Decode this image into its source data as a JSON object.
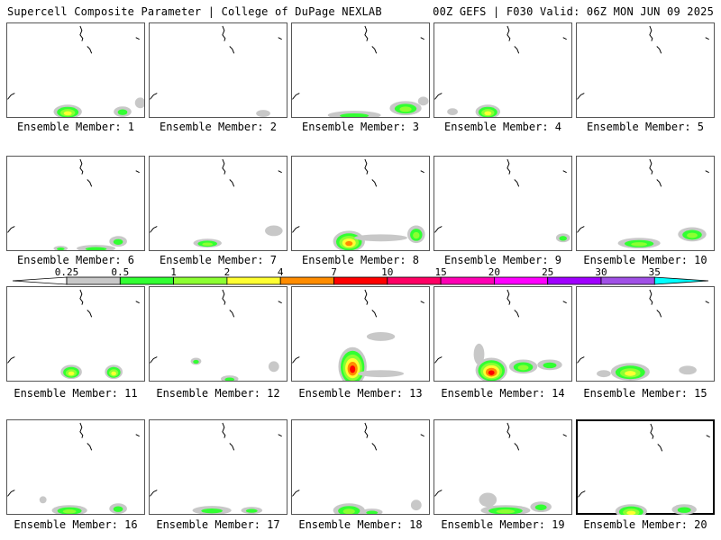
{
  "header": {
    "left": "Supercell Composite Parameter | College of DuPage NEXLAB",
    "right": "00Z GEFS | F030 Valid: 06Z MON JUN 09 2025"
  },
  "colorbar": {
    "labels": [
      "0.25",
      "0.5",
      "1",
      "2",
      "4",
      "7",
      "10",
      "15",
      "20",
      "25",
      "30",
      "35"
    ],
    "colors": [
      "#c8c8c8",
      "#32ff32",
      "#8cff32",
      "#ffff32",
      "#ff8c00",
      "#ff0000",
      "#ff0064",
      "#ff00b4",
      "#ff00ff",
      "#a000ff",
      "#a050e6",
      "#00ffff"
    ]
  },
  "members": [
    {
      "label": "Ensemble Member: 1"
    },
    {
      "label": "Ensemble Member: 2"
    },
    {
      "label": "Ensemble Member: 3"
    },
    {
      "label": "Ensemble Member: 4"
    },
    {
      "label": "Ensemble Member: 5"
    },
    {
      "label": "Ensemble Member: 6"
    },
    {
      "label": "Ensemble Member: 7"
    },
    {
      "label": "Ensemble Member: 8"
    },
    {
      "label": "Ensemble Member: 9"
    },
    {
      "label": "Ensemble Member: 10"
    },
    {
      "label": "Ensemble Member: 11"
    },
    {
      "label": "Ensemble Member: 12"
    },
    {
      "label": "Ensemble Member: 13"
    },
    {
      "label": "Ensemble Member: 14"
    },
    {
      "label": "Ensemble Member: 15"
    },
    {
      "label": "Ensemble Member: 16"
    },
    {
      "label": "Ensemble Member: 17"
    },
    {
      "label": "Ensemble Member: 18"
    },
    {
      "label": "Ensemble Member: 19"
    },
    {
      "label": "Ensemble Member: 20",
      "selected": true
    }
  ]
}
